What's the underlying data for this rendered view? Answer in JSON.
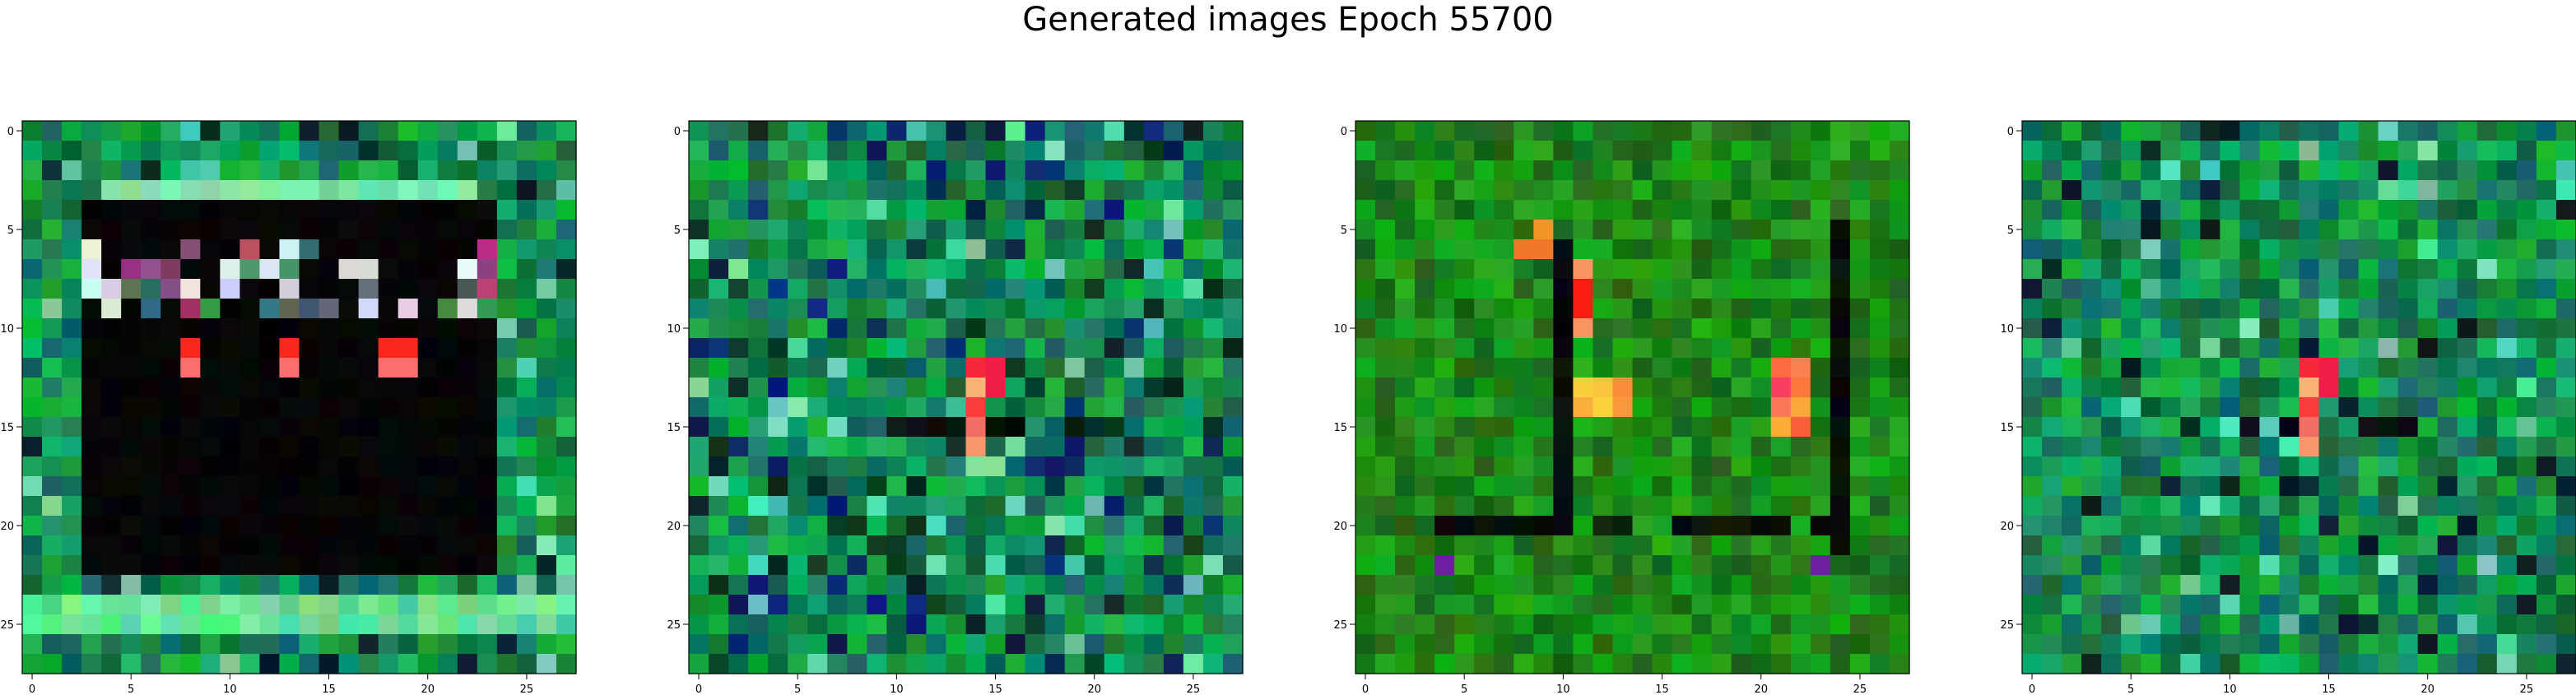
{
  "figure": {
    "title": "Generated images Epoch 55700"
  },
  "chart_data": [
    {
      "type": "heatmap",
      "variant": "framed-dark-interior",
      "palette": "green-noise",
      "grid_size": 28,
      "x_ticks": [
        0,
        5,
        10,
        15,
        20,
        25
      ],
      "y_ticks": [
        0,
        5,
        10,
        15,
        20,
        25
      ],
      "xlim": [
        -0.5,
        27.5
      ],
      "ylim": [
        27.5,
        -0.5
      ],
      "seed": 11
    },
    {
      "type": "heatmap",
      "variant": "noise-with-red-streak",
      "palette": "teal-noise",
      "grid_size": 28,
      "x_ticks": [
        0,
        5,
        10,
        15,
        20,
        25
      ],
      "y_ticks": [
        0,
        5,
        10,
        15,
        20,
        25
      ],
      "xlim": [
        -0.5,
        27.5
      ],
      "ylim": [
        27.5,
        -0.5
      ],
      "seed": 23
    },
    {
      "type": "heatmap",
      "variant": "bright-green-with-dark-bars",
      "palette": "bright-green",
      "grid_size": 28,
      "x_ticks": [
        0,
        5,
        10,
        15,
        20,
        25
      ],
      "y_ticks": [
        0,
        5,
        10,
        15,
        20,
        25
      ],
      "xlim": [
        -0.5,
        27.5
      ],
      "ylim": [
        27.5,
        -0.5
      ],
      "seed": 37
    },
    {
      "type": "heatmap",
      "variant": "noise-with-red-streak",
      "palette": "green-noise",
      "grid_size": 28,
      "x_ticks": [
        0,
        5,
        10,
        15,
        20,
        25
      ],
      "y_ticks": [
        0,
        5,
        10,
        15,
        20,
        25
      ],
      "xlim": [
        -0.5,
        27.5
      ],
      "ylim": [
        27.5,
        -0.5
      ],
      "seed": 53
    }
  ]
}
